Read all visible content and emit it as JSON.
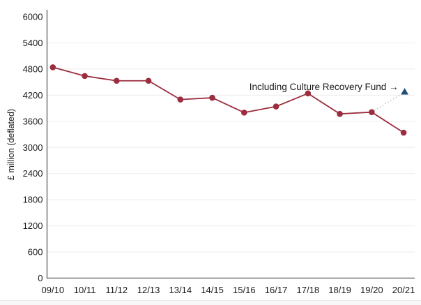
{
  "chart_data": {
    "type": "line",
    "title": "",
    "xlabel": "",
    "ylabel": "£ million (deflated)",
    "categories": [
      "09/10",
      "10/11",
      "11/12",
      "12/13",
      "13/14",
      "14/15",
      "15/16",
      "16/17",
      "17/18",
      "18/19",
      "19/20",
      "20/21"
    ],
    "series": [
      {
        "marker": "circle",
        "color": "#9b2d3f",
        "values": [
          4840,
          4640,
          4530,
          4530,
          4100,
          4140,
          3800,
          3940,
          4240,
          3770,
          3810,
          3340
        ]
      }
    ],
    "annotation_point": {
      "label": "Including Culture Recovery Fund →",
      "category": "20/21",
      "value": 4280,
      "marker": "triangle",
      "color": "#1f4e79",
      "connector_from_category": "19/20",
      "connector_from_value": 3810,
      "connector_style": "dotted"
    },
    "ylim": [
      0,
      6000
    ],
    "yticks": [
      0,
      600,
      1200,
      1800,
      2400,
      3000,
      3600,
      4200,
      4800,
      5400,
      6000
    ],
    "grid": "horizontal",
    "legend": "none"
  },
  "colors": {
    "line": "#9b2d3f",
    "marker": "#9b2d3f",
    "triangle": "#1f4e79",
    "connector": "#b3b3b3",
    "gridline": "#ececec",
    "axis": "#757575",
    "text": "#1a1a1a"
  }
}
